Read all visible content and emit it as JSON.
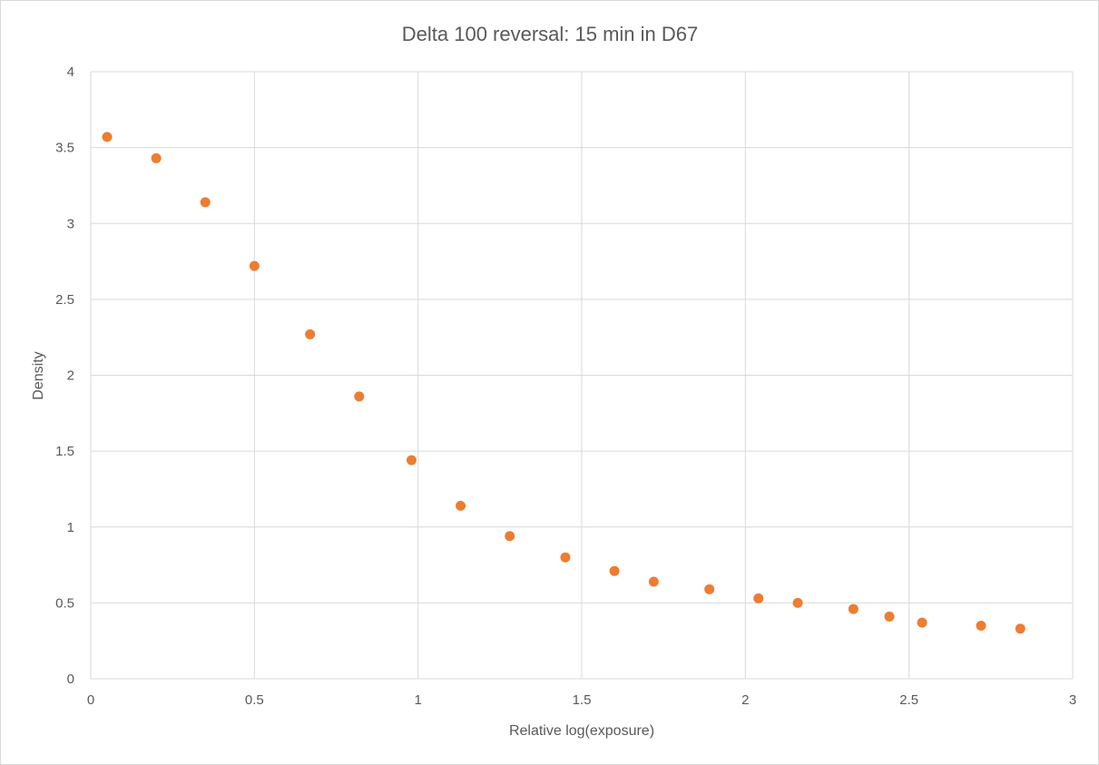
{
  "chart_data": {
    "type": "scatter",
    "title": "Delta 100 reversal: 15 min in D67",
    "xlabel": "Relative log(exposure)",
    "ylabel": "Density",
    "xlim": [
      0,
      3
    ],
    "ylim": [
      0,
      4
    ],
    "xticks": [
      "0",
      "0.5",
      "1",
      "1.5",
      "2",
      "2.5",
      "3"
    ],
    "yticks": [
      "0",
      "0.5",
      "1",
      "1.5",
      "2",
      "2.5",
      "3",
      "3.5",
      "4"
    ],
    "grid": true,
    "marker_color": "#ED7D31",
    "points": [
      [
        0.05,
        3.57
      ],
      [
        0.2,
        3.43
      ],
      [
        0.35,
        3.14
      ],
      [
        0.5,
        2.72
      ],
      [
        0.67,
        2.27
      ],
      [
        0.82,
        1.86
      ],
      [
        0.98,
        1.44
      ],
      [
        1.13,
        1.14
      ],
      [
        1.28,
        0.94
      ],
      [
        1.45,
        0.8
      ],
      [
        1.6,
        0.71
      ],
      [
        1.72,
        0.64
      ],
      [
        1.89,
        0.59
      ],
      [
        2.04,
        0.53
      ],
      [
        2.16,
        0.5
      ],
      [
        2.33,
        0.46
      ],
      [
        2.44,
        0.41
      ],
      [
        2.54,
        0.37
      ],
      [
        2.72,
        0.35
      ],
      [
        2.84,
        0.33
      ]
    ]
  }
}
